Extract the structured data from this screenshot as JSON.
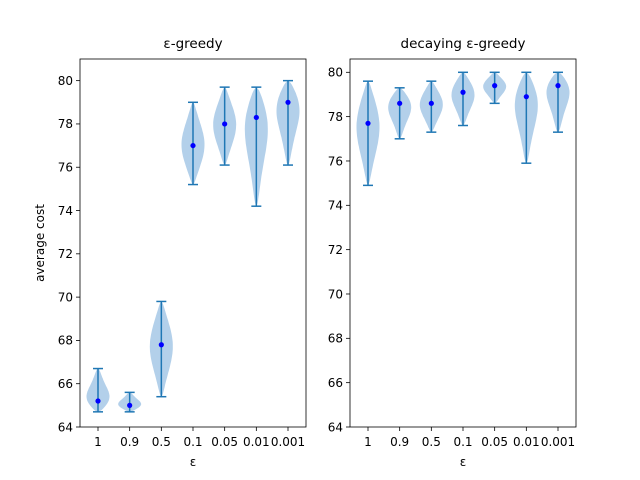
{
  "chart_data": [
    {
      "type": "violin",
      "title": "ε-greedy",
      "xlabel": "ε",
      "ylabel": "average cost",
      "categories": [
        "1",
        "0.9",
        "0.5",
        "0.1",
        "0.05",
        "0.01",
        "0.001"
      ],
      "ylim": [
        64,
        81
      ],
      "yticks": [
        64,
        66,
        68,
        70,
        72,
        74,
        76,
        78,
        80
      ],
      "min": [
        64.7,
        64.7,
        65.4,
        75.2,
        76.1,
        74.2,
        76.1
      ],
      "max": [
        66.7,
        65.6,
        69.8,
        79.0,
        79.7,
        79.7,
        80.0
      ],
      "mean": [
        65.2,
        65.0,
        67.8,
        77.0,
        78.0,
        78.3,
        79.0
      ],
      "grid": false
    },
    {
      "type": "violin",
      "title": "decaying ε-greedy",
      "xlabel": "ε",
      "ylabel": "",
      "categories": [
        "1",
        "0.9",
        "0.5",
        "0.1",
        "0.05",
        "0.01",
        "0.001"
      ],
      "ylim": [
        64,
        80.6
      ],
      "yticks": [
        64,
        66,
        68,
        70,
        72,
        74,
        76,
        78,
        80
      ],
      "min": [
        74.9,
        77.0,
        77.3,
        77.6,
        78.6,
        75.9,
        77.3
      ],
      "max": [
        79.6,
        79.3,
        79.6,
        80.0,
        80.0,
        80.0,
        80.0
      ],
      "mean": [
        77.7,
        78.6,
        78.6,
        79.1,
        79.4,
        78.9,
        79.4
      ],
      "grid": false
    }
  ],
  "colors": {
    "violin_fill": "#a6c8e6",
    "violin_edge": "#1f77b4",
    "mean_marker": "#0000ff"
  }
}
